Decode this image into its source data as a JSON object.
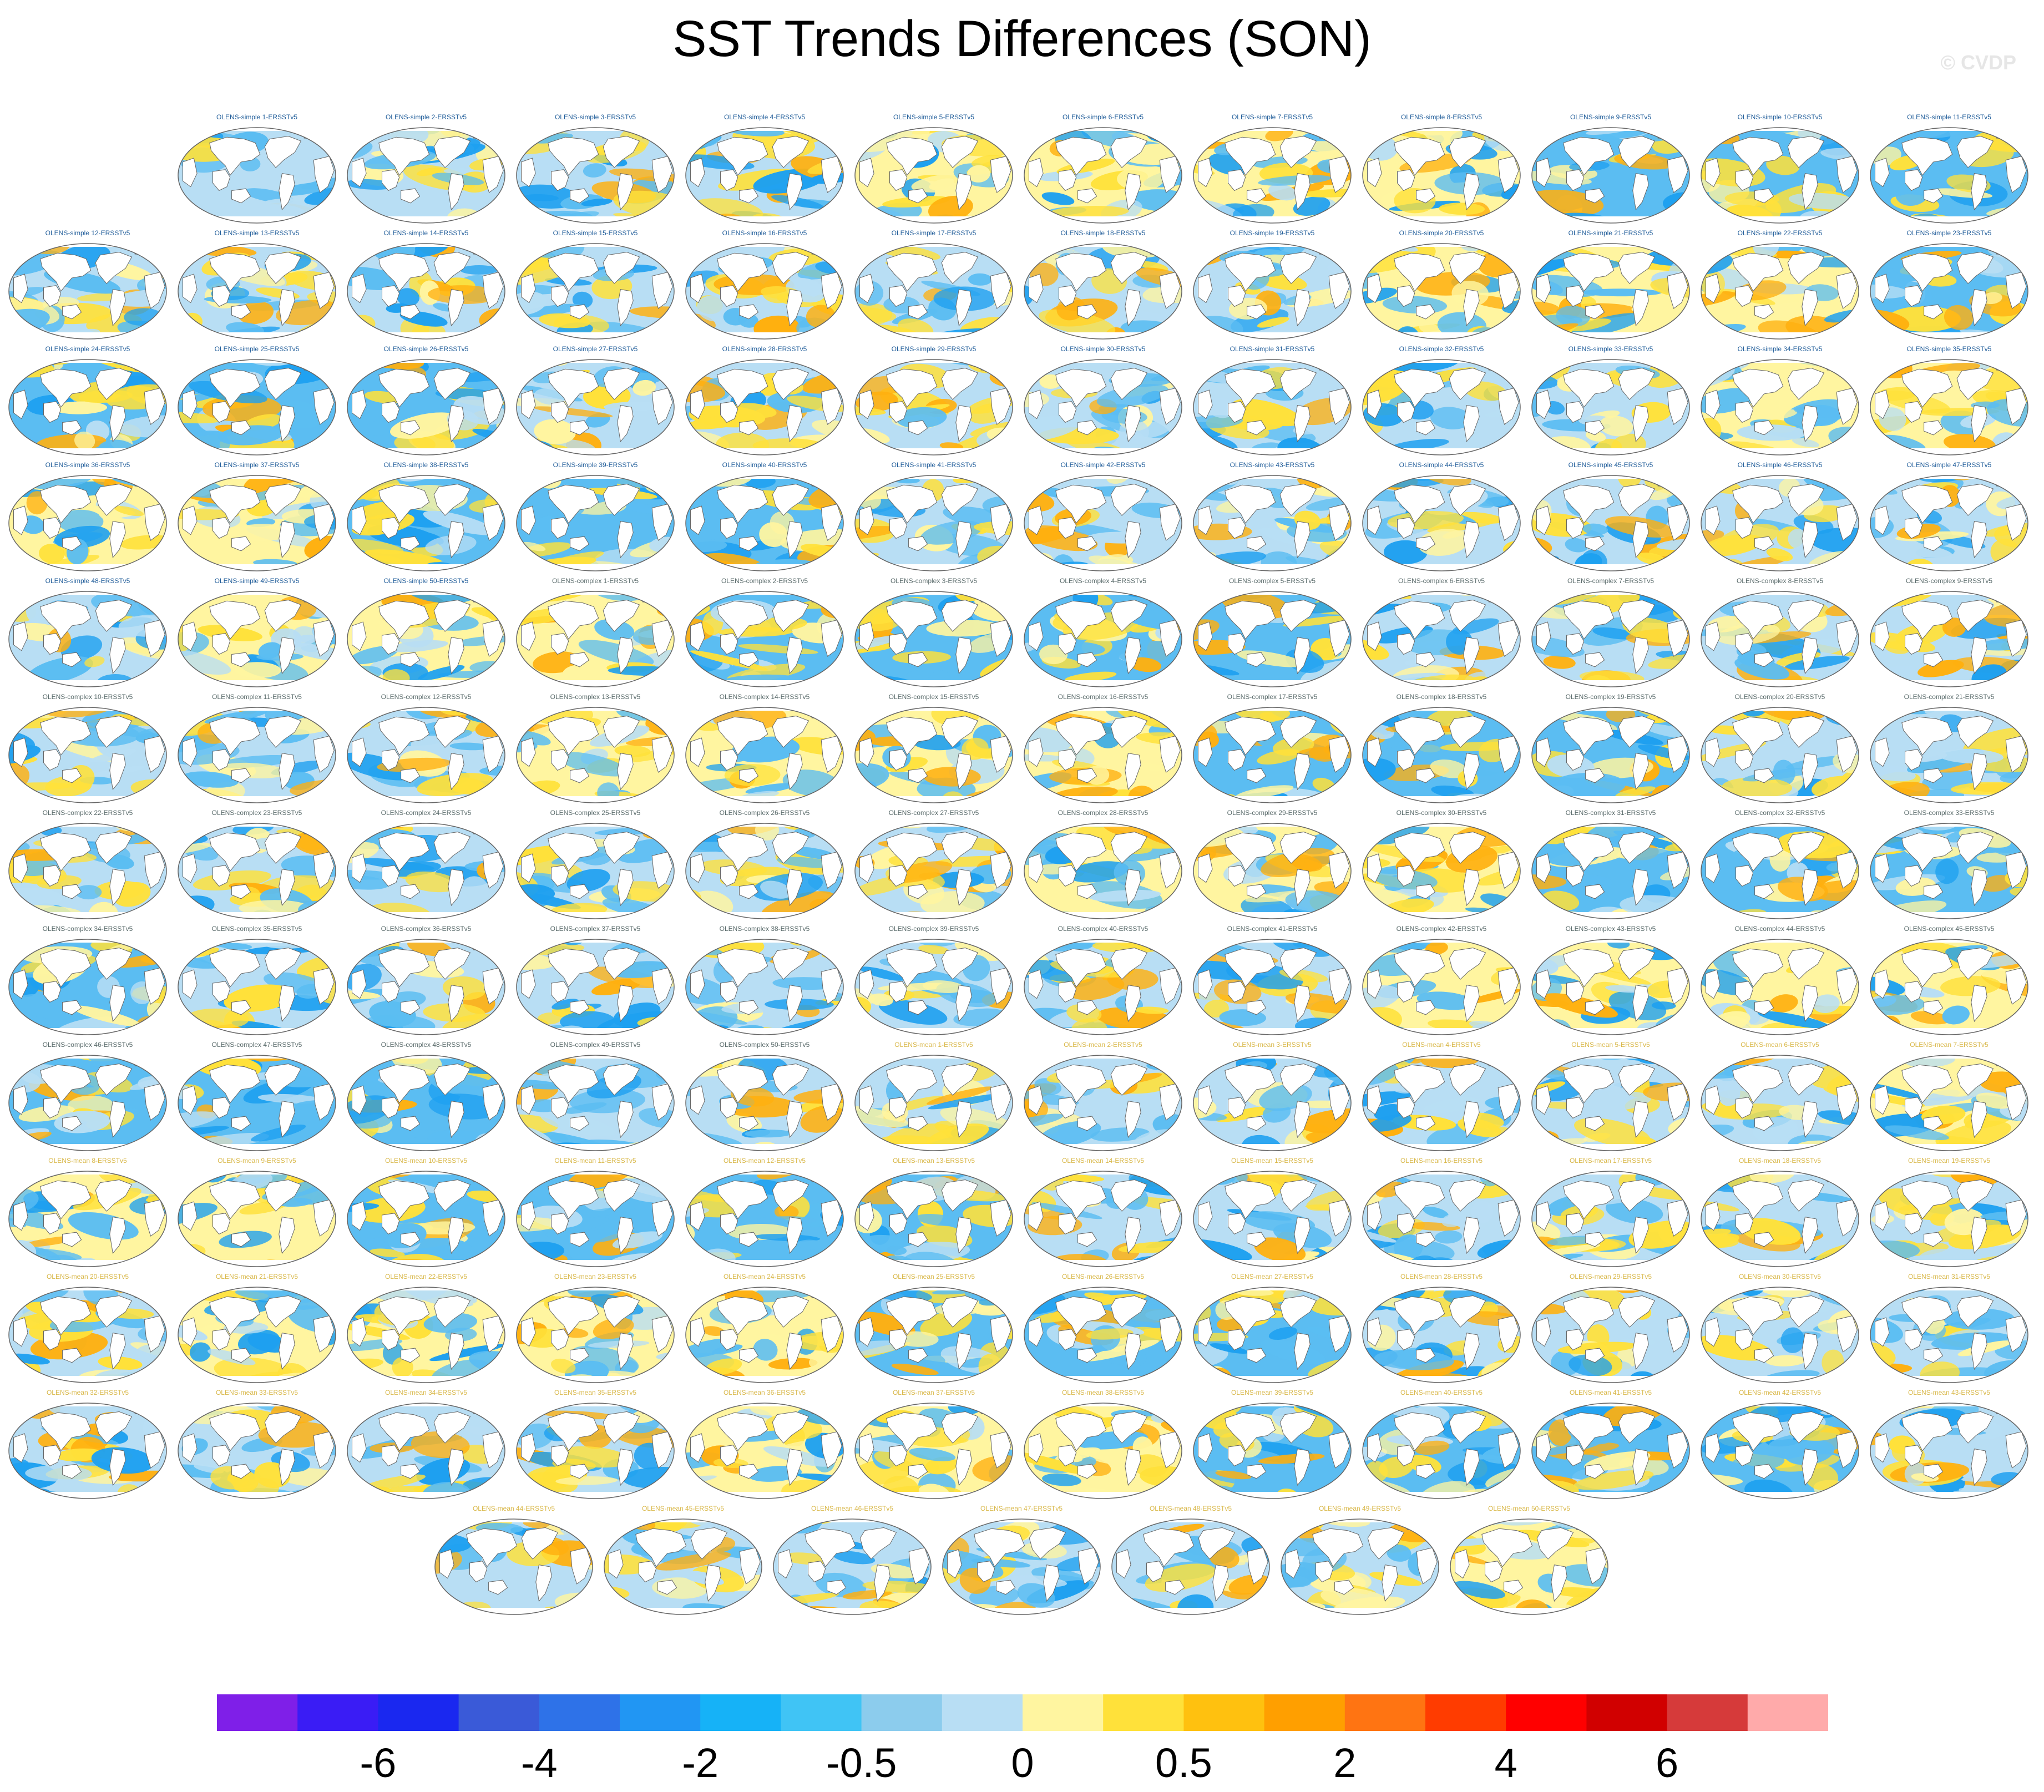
{
  "title": "SST Trends Differences (SON)",
  "watermark": "© CVDP",
  "panel_groups": [
    {
      "prefix": "OLENS-simple",
      "count": 50,
      "title_color": "#1f5c99"
    },
    {
      "prefix": "OLENS-complex",
      "count": 50,
      "title_color": "#5a6b6b"
    },
    {
      "prefix": "OLENS-mean",
      "count": 50,
      "title_color": "#d9b84a"
    }
  ],
  "panel_suffix": "-ERSSTv5",
  "colorbar": {
    "colors": [
      "#7f1fe8",
      "#3a1cf5",
      "#1a28f0",
      "#3a5ad8",
      "#2e72e8",
      "#2196f3",
      "#16b2f7",
      "#40c4f5",
      "#8ccced",
      "#b8def4",
      "#fff5a0",
      "#ffe13a",
      "#ffc10f",
      "#ff9f00",
      "#ff7412",
      "#ff3c00",
      "#ff0000",
      "#d10000",
      "#d63a3a",
      "#ffaaaa"
    ],
    "labels": [
      "-6",
      "-4",
      "-2",
      "-0.5",
      "0",
      "0.5",
      "2",
      "4",
      "6"
    ],
    "label_after_box": [
      2,
      4,
      6,
      8,
      10,
      12,
      14,
      16,
      18
    ]
  },
  "field_colors": {
    "blue_deep": "#1ea0f0",
    "blue_mid": "#5bbdf2",
    "blue_light": "#b8def4",
    "yellow_light": "#fff5a0",
    "yellow": "#ffe13a",
    "orange": "#ffb00f",
    "land": "#ffffff",
    "outline": "#666666"
  }
}
